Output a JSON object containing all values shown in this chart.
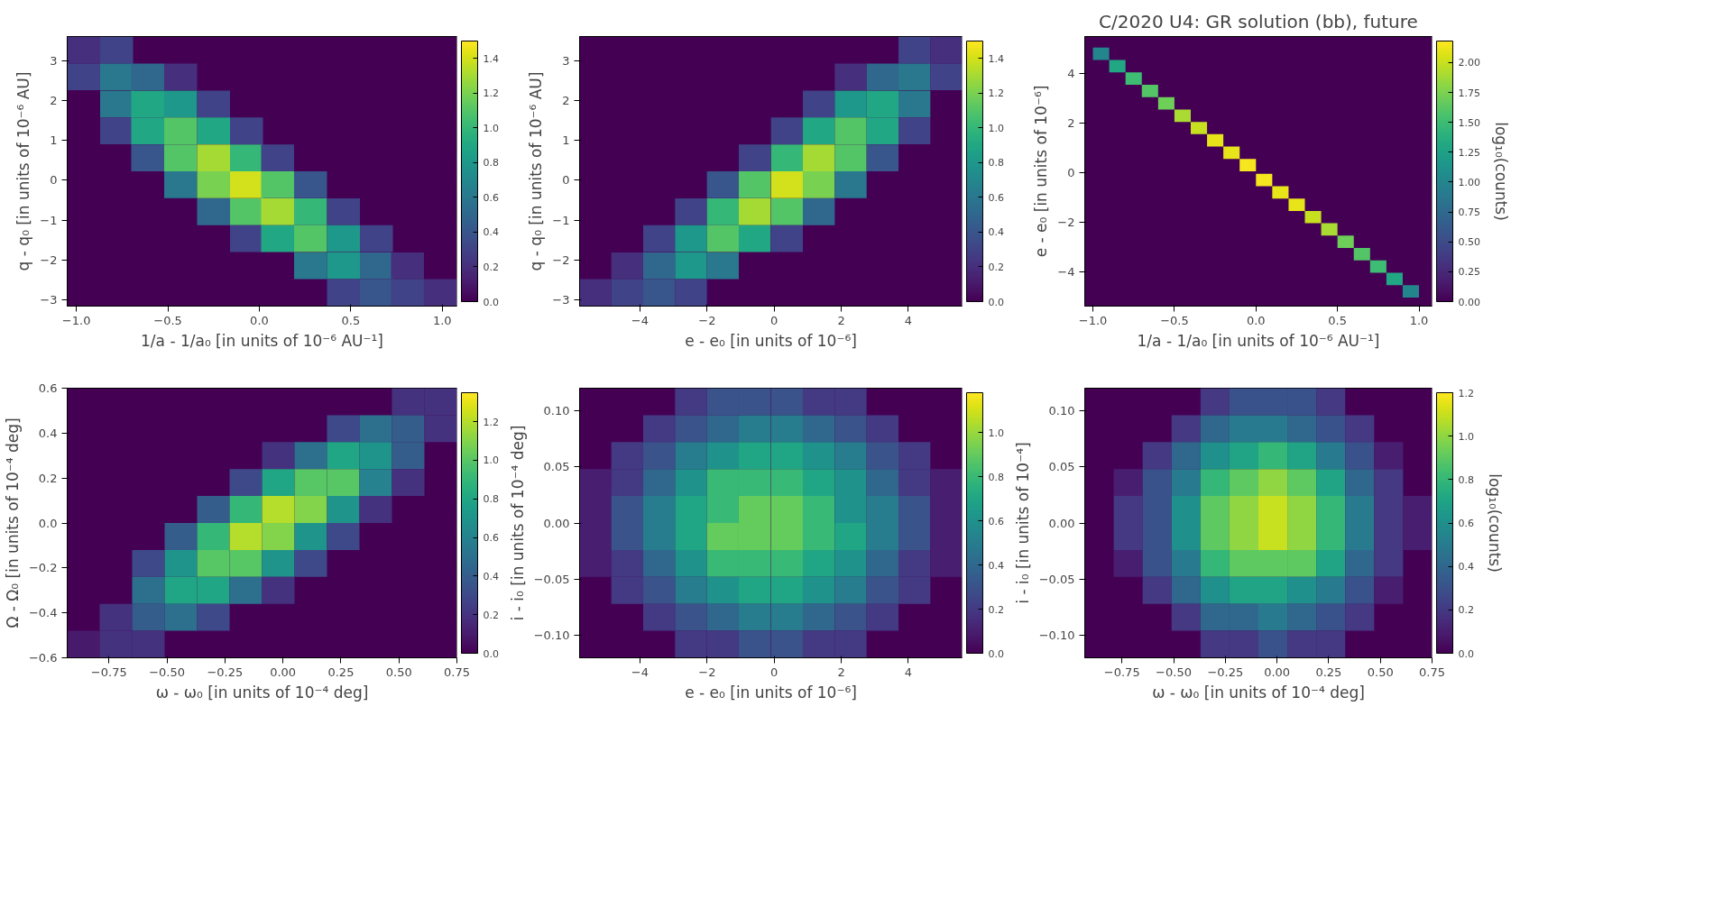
{
  "chart_data": [
    {
      "type": "scatter",
      "marker": "square",
      "xlabel": "1/a - 1/a₀ [in units of 10⁻⁶ AU⁻¹]",
      "ylabel": "q - q₀ [in units of 10⁻⁶ AU]",
      "x": [
        -0.96,
        -0.78,
        -0.96,
        -0.78,
        -0.61,
        -0.43,
        -0.78,
        -0.61,
        -0.43,
        -0.25,
        -0.78,
        -0.61,
        -0.43,
        -0.25,
        -0.07,
        -0.61,
        -0.43,
        -0.25,
        -0.07,
        0.1,
        -0.43,
        -0.25,
        -0.07,
        0.1,
        0.28,
        -0.25,
        -0.07,
        0.1,
        0.28,
        0.46,
        -0.07,
        0.1,
        0.28,
        0.46,
        0.64,
        0.28,
        0.46,
        0.64,
        0.81,
        0.46,
        0.64,
        0.81,
        0.99
      ],
      "values": [
        3.26,
        3.26,
        2.59,
        2.59,
        2.59,
        2.59,
        1.91,
        1.91,
        1.91,
        1.91,
        1.24,
        1.24,
        1.24,
        1.24,
        1.24,
        0.56,
        0.56,
        0.56,
        0.56,
        0.56,
        -0.11,
        -0.11,
        -0.11,
        -0.11,
        -0.11,
        -0.79,
        -0.79,
        -0.79,
        -0.79,
        -0.79,
        -1.46,
        -1.46,
        -1.46,
        -1.46,
        -1.46,
        -2.14,
        -2.14,
        -2.14,
        -2.14,
        -2.81,
        -2.81,
        -2.81,
        -2.81
      ],
      "cvalues": [
        0.2,
        0.3,
        0.3,
        0.6,
        0.5,
        0.2,
        0.6,
        0.9,
        0.8,
        0.3,
        0.3,
        0.9,
        1.1,
        0.9,
        0.3,
        0.4,
        1.1,
        1.3,
        1.0,
        0.3,
        0.6,
        1.2,
        1.4,
        1.1,
        0.4,
        0.5,
        1.1,
        1.3,
        1.0,
        0.3,
        0.3,
        0.9,
        1.1,
        0.8,
        0.3,
        0.6,
        0.8,
        0.5,
        0.2,
        0.3,
        0.4,
        0.3,
        0.2
      ],
      "xlim": [
        -1.05,
        1.08
      ],
      "ylim": [
        -3.15,
        3.6
      ],
      "xticks": [
        {
          "value": -1,
          "label": "−1.0"
        },
        {
          "value": -0.5,
          "label": "−0.5"
        },
        {
          "value": 0,
          "label": "0.0"
        },
        {
          "value": 0.5,
          "label": "0.5"
        },
        {
          "value": 1,
          "label": "1.0"
        }
      ],
      "yticks": [
        {
          "value": -3,
          "label": "−3"
        },
        {
          "value": -2,
          "label": "−2"
        },
        {
          "value": -1,
          "label": "−1"
        },
        0,
        1,
        2,
        3
      ],
      "clim": [
        0,
        1.5
      ],
      "cticks": [
        {
          "value": 0,
          "label": "0.0"
        },
        0.2,
        0.4,
        0.6,
        0.8,
        {
          "value": 1,
          "label": "1.0"
        },
        1.2,
        1.4
      ]
    },
    {
      "type": "scatter",
      "marker": "square",
      "xlabel": "e - e₀ [in units of 10⁻⁶]",
      "ylabel": "q - q₀ [in units of 10⁻⁶ AU]",
      "x": [
        4.18,
        5.13,
        2.28,
        3.23,
        4.18,
        5.13,
        1.33,
        2.28,
        3.23,
        4.18,
        0.38,
        1.33,
        2.28,
        3.23,
        4.18,
        -0.58,
        0.38,
        1.33,
        2.28,
        3.23,
        -1.53,
        -0.58,
        0.38,
        1.33,
        2.28,
        -2.48,
        -1.53,
        -0.58,
        0.38,
        1.33,
        -3.43,
        -2.48,
        -1.53,
        -0.58,
        0.38,
        -4.38,
        -3.43,
        -2.48,
        -1.53,
        -5.33,
        -4.38,
        -3.43,
        -2.48
      ],
      "values": [
        3.26,
        3.26,
        2.59,
        2.59,
        2.59,
        2.59,
        1.91,
        1.91,
        1.91,
        1.91,
        1.24,
        1.24,
        1.24,
        1.24,
        1.24,
        0.56,
        0.56,
        0.56,
        0.56,
        0.56,
        -0.11,
        -0.11,
        -0.11,
        -0.11,
        -0.11,
        -0.79,
        -0.79,
        -0.79,
        -0.79,
        -0.79,
        -1.46,
        -1.46,
        -1.46,
        -1.46,
        -1.46,
        -2.14,
        -2.14,
        -2.14,
        -2.14,
        -2.81,
        -2.81,
        -2.81,
        -2.81
      ],
      "cvalues": [
        0.3,
        0.2,
        0.2,
        0.5,
        0.6,
        0.3,
        0.3,
        0.8,
        0.9,
        0.6,
        0.3,
        0.9,
        1.1,
        0.9,
        0.3,
        0.3,
        1.0,
        1.3,
        1.1,
        0.4,
        0.4,
        1.1,
        1.4,
        1.2,
        0.6,
        0.3,
        1.0,
        1.3,
        1.1,
        0.5,
        0.3,
        0.8,
        1.1,
        0.9,
        0.3,
        0.2,
        0.5,
        0.8,
        0.6,
        0.2,
        0.3,
        0.4,
        0.3
      ],
      "xlim": [
        -5.8,
        5.6
      ],
      "ylim": [
        -3.15,
        3.6
      ],
      "xticks": [
        {
          "value": -4,
          "label": "−4"
        },
        {
          "value": -2,
          "label": "−2"
        },
        0,
        2,
        4
      ],
      "yticks": [
        {
          "value": -3,
          "label": "−3"
        },
        {
          "value": -2,
          "label": "−2"
        },
        {
          "value": -1,
          "label": "−1"
        },
        0,
        1,
        2,
        3
      ],
      "clim": [
        0,
        1.5
      ],
      "cticks": [
        {
          "value": 0,
          "label": "0.0"
        },
        0.2,
        0.4,
        0.6,
        0.8,
        {
          "value": 1,
          "label": "1.0"
        },
        1.2,
        1.4
      ]
    },
    {
      "type": "scatter",
      "marker": "square",
      "title": "C/2020 U4: GR solution (bb), future",
      "xlabel": "1/a - 1/a₀ [in units of 10⁻⁶ AU⁻¹]",
      "ylabel": "e - e₀ [in units of 10⁻⁶]",
      "clabel": "log₁₀(counts)",
      "x": [
        -0.95,
        -0.85,
        -0.75,
        -0.65,
        -0.55,
        -0.45,
        -0.35,
        -0.25,
        -0.15,
        -0.05,
        0.05,
        0.15,
        0.25,
        0.35,
        0.45,
        0.55,
        0.65,
        0.75,
        0.85,
        0.95
      ],
      "values": [
        4.8,
        4.3,
        3.8,
        3.3,
        2.8,
        2.3,
        1.8,
        1.3,
        0.8,
        0.3,
        -0.3,
        -0.8,
        -1.3,
        -1.8,
        -2.3,
        -2.8,
        -3.3,
        -3.8,
        -4.3,
        -4.8
      ],
      "cvalues": [
        1.0,
        1.3,
        1.5,
        1.6,
        1.7,
        1.9,
        2.0,
        2.1,
        2.1,
        2.15,
        2.15,
        2.1,
        2.1,
        2.0,
        1.9,
        1.7,
        1.6,
        1.5,
        1.3,
        1.0
      ],
      "xlim": [
        -1.05,
        1.08
      ],
      "ylim": [
        -5.4,
        5.5
      ],
      "xticks": [
        {
          "value": -1,
          "label": "−1.0"
        },
        {
          "value": -0.5,
          "label": "−0.5"
        },
        {
          "value": 0,
          "label": "0.0"
        },
        {
          "value": 0.5,
          "label": "0.5"
        },
        {
          "value": 1,
          "label": "1.0"
        }
      ],
      "yticks": [
        {
          "value": -4,
          "label": "−4"
        },
        {
          "value": -2,
          "label": "−2"
        },
        0,
        2,
        4
      ],
      "clim": [
        0,
        2.18
      ],
      "cticks": [
        {
          "value": 0,
          "label": "0.00"
        },
        {
          "value": 0.25,
          "label": "0.25"
        },
        {
          "value": 0.5,
          "label": "0.50"
        },
        {
          "value": 0.75,
          "label": "0.75"
        },
        {
          "value": 1,
          "label": "1.00"
        },
        {
          "value": 1.25,
          "label": "1.25"
        },
        {
          "value": 1.5,
          "label": "1.50"
        },
        {
          "value": 1.75,
          "label": "1.75"
        },
        {
          "value": 2,
          "label": "2.00"
        }
      ]
    },
    {
      "type": "scatter",
      "marker": "square",
      "xlabel": "ω - ω₀ [in units of 10⁻⁴ deg]",
      "ylabel": "Ω - Ω₀ [in units of 10⁻⁴ deg]",
      "x": [
        0.54,
        0.68,
        0.26,
        0.4,
        0.54,
        0.68,
        -0.02,
        0.12,
        0.26,
        0.4,
        0.54,
        -0.16,
        -0.02,
        0.12,
        0.26,
        0.4,
        0.54,
        -0.3,
        -0.16,
        -0.02,
        0.12,
        0.26,
        0.4,
        -0.44,
        -0.3,
        -0.16,
        -0.02,
        0.12,
        0.26,
        -0.58,
        -0.44,
        -0.3,
        -0.16,
        -0.02,
        0.12,
        -0.58,
        -0.44,
        -0.3,
        -0.16,
        -0.02,
        -0.72,
        -0.58,
        -0.44,
        -0.3,
        -0.86,
        -0.72,
        -0.58
      ],
      "values": [
        0.54,
        0.54,
        0.42,
        0.42,
        0.42,
        0.42,
        0.3,
        0.3,
        0.3,
        0.3,
        0.3,
        0.18,
        0.18,
        0.18,
        0.18,
        0.18,
        0.18,
        0.06,
        0.06,
        0.06,
        0.06,
        0.06,
        0.06,
        -0.06,
        -0.06,
        -0.06,
        -0.06,
        -0.06,
        -0.06,
        -0.18,
        -0.18,
        -0.18,
        -0.18,
        -0.18,
        -0.18,
        -0.3,
        -0.3,
        -0.3,
        -0.3,
        -0.3,
        -0.42,
        -0.42,
        -0.42,
        -0.42,
        -0.54,
        -0.54,
        -0.54
      ],
      "cvalues": [
        0.2,
        0.2,
        0.3,
        0.5,
        0.4,
        0.2,
        0.2,
        0.5,
        0.8,
        0.7,
        0.4,
        0.3,
        0.8,
        1.0,
        1.0,
        0.6,
        0.2,
        0.4,
        0.9,
        1.2,
        1.1,
        0.7,
        0.2,
        0.4,
        0.9,
        1.2,
        1.1,
        0.7,
        0.3,
        0.3,
        0.7,
        1.0,
        1.0,
        0.7,
        0.3,
        0.5,
        0.8,
        0.8,
        0.5,
        0.2,
        0.2,
        0.4,
        0.5,
        0.3,
        0.1,
        0.2,
        0.2
      ],
      "xlim": [
        -0.93,
        0.75
      ],
      "ylim": [
        -0.6,
        0.6
      ],
      "xticks": [
        {
          "value": -0.75,
          "label": "−0.75"
        },
        {
          "value": -0.5,
          "label": "−0.50"
        },
        {
          "value": -0.25,
          "label": "−0.25"
        },
        {
          "value": 0,
          "label": "0.00"
        },
        {
          "value": 0.25,
          "label": "0.25"
        },
        {
          "value": 0.5,
          "label": "0.50"
        },
        {
          "value": 0.75,
          "label": "0.75"
        }
      ],
      "yticks": [
        {
          "value": -0.6,
          "label": "−0.6"
        },
        {
          "value": -0.4,
          "label": "−0.4"
        },
        {
          "value": -0.2,
          "label": "−0.2"
        },
        {
          "value": 0,
          "label": "0.0"
        },
        0.2,
        0.4,
        0.6
      ],
      "clim": [
        0,
        1.35
      ],
      "cticks": [
        {
          "value": 0,
          "label": "0.0"
        },
        0.2,
        0.4,
        0.6,
        0.8,
        {
          "value": 1,
          "label": "1.0"
        },
        1.2
      ]
    },
    {
      "type": "scatter",
      "marker": "square",
      "xlabel": "e - e₀ [in units of 10⁻⁶]",
      "ylabel": "i - i₀ [in units of 10⁻⁴ deg]",
      "x": [
        -2.48,
        -1.53,
        -0.58,
        0.38,
        1.33,
        2.28,
        -3.43,
        -2.48,
        -1.53,
        -0.58,
        0.38,
        1.33,
        2.28,
        3.23,
        -4.38,
        -3.43,
        -2.48,
        -1.53,
        -0.58,
        0.38,
        1.33,
        2.28,
        3.23,
        4.18,
        -5.33,
        -4.38,
        -3.43,
        -2.48,
        -1.53,
        -0.58,
        0.38,
        1.33,
        2.28,
        3.23,
        4.18,
        5.13,
        -5.33,
        -4.38,
        -3.43,
        -2.48,
        -1.53,
        -0.58,
        0.38,
        1.33,
        2.28,
        3.23,
        4.18,
        5.13,
        -5.33,
        -4.38,
        -3.43,
        -2.48,
        -1.53,
        -0.58,
        0.38,
        1.33,
        2.28,
        3.23,
        4.18,
        5.13,
        -5.33,
        -4.38,
        -3.43,
        -2.48,
        -1.53,
        -0.58,
        0.38,
        1.33,
        2.28,
        3.23,
        4.18,
        5.13,
        -4.38,
        -3.43,
        -2.48,
        -1.53,
        -0.58,
        0.38,
        1.33,
        2.28,
        3.23,
        4.18,
        -3.43,
        -2.48,
        -1.53,
        -0.58,
        0.38,
        1.33,
        2.28,
        3.23,
        -2.48,
        -1.53,
        -0.58,
        0.38,
        1.33,
        2.28
      ],
      "values": [
        0.108,
        0.108,
        0.108,
        0.108,
        0.108,
        0.108,
        0.084,
        0.084,
        0.084,
        0.084,
        0.084,
        0.084,
        0.084,
        0.084,
        0.06,
        0.06,
        0.06,
        0.06,
        0.06,
        0.06,
        0.06,
        0.06,
        0.06,
        0.06,
        0.036,
        0.036,
        0.036,
        0.036,
        0.036,
        0.036,
        0.036,
        0.036,
        0.036,
        0.036,
        0.036,
        0.036,
        0.012,
        0.012,
        0.012,
        0.012,
        0.012,
        0.012,
        0.012,
        0.012,
        0.012,
        0.012,
        0.012,
        0.012,
        -0.012,
        -0.012,
        -0.012,
        -0.012,
        -0.012,
        -0.012,
        -0.012,
        -0.012,
        -0.012,
        -0.012,
        -0.012,
        -0.012,
        -0.036,
        -0.036,
        -0.036,
        -0.036,
        -0.036,
        -0.036,
        -0.036,
        -0.036,
        -0.036,
        -0.036,
        -0.036,
        -0.036,
        -0.06,
        -0.06,
        -0.06,
        -0.06,
        -0.06,
        -0.06,
        -0.06,
        -0.06,
        -0.06,
        -0.06,
        -0.084,
        -0.084,
        -0.084,
        -0.084,
        -0.084,
        -0.084,
        -0.084,
        -0.084,
        -0.108,
        -0.108,
        -0.108,
        -0.108,
        -0.108,
        -0.108
      ],
      "cvalues": [
        0.2,
        0.3,
        0.3,
        0.3,
        0.2,
        0.2,
        0.2,
        0.3,
        0.4,
        0.5,
        0.5,
        0.4,
        0.3,
        0.2,
        0.2,
        0.3,
        0.5,
        0.6,
        0.7,
        0.7,
        0.6,
        0.5,
        0.3,
        0.2,
        0.1,
        0.2,
        0.4,
        0.6,
        0.8,
        0.8,
        0.8,
        0.7,
        0.6,
        0.4,
        0.2,
        0.1,
        0.1,
        0.3,
        0.5,
        0.7,
        0.8,
        0.9,
        0.9,
        0.8,
        0.6,
        0.5,
        0.3,
        0.1,
        0.1,
        0.3,
        0.5,
        0.7,
        0.9,
        0.9,
        0.9,
        0.8,
        0.7,
        0.5,
        0.3,
        0.1,
        0.1,
        0.2,
        0.4,
        0.6,
        0.8,
        0.8,
        0.8,
        0.7,
        0.6,
        0.4,
        0.2,
        0.1,
        0.2,
        0.3,
        0.5,
        0.6,
        0.7,
        0.7,
        0.6,
        0.5,
        0.3,
        0.2,
        0.2,
        0.3,
        0.4,
        0.5,
        0.5,
        0.4,
        0.3,
        0.2,
        0.2,
        0.2,
        0.3,
        0.3,
        0.2,
        0.2
      ],
      "xlim": [
        -5.8,
        5.6
      ],
      "ylim": [
        -0.12,
        0.12
      ],
      "xticks": [
        {
          "value": -4,
          "label": "−4"
        },
        {
          "value": -2,
          "label": "−2"
        },
        0,
        2,
        4
      ],
      "yticks": [
        {
          "value": -0.1,
          "label": "−0.10"
        },
        {
          "value": -0.05,
          "label": "−0.05"
        },
        {
          "value": 0,
          "label": "0.00"
        },
        {
          "value": 0.05,
          "label": "0.05"
        },
        {
          "value": 0.1,
          "label": "0.10"
        }
      ],
      "clim": [
        0,
        1.18
      ],
      "cticks": [
        {
          "value": 0,
          "label": "0.0"
        },
        0.2,
        0.4,
        0.6,
        0.8,
        {
          "value": 1,
          "label": "1.0"
        }
      ]
    },
    {
      "type": "scatter",
      "marker": "square",
      "xlabel": "ω - ω₀ [in units of 10⁻⁴ deg]",
      "ylabel": "i - i₀ [in units of 10⁻⁴]",
      "clabel": "log₁₀(counts)",
      "x": [
        -0.3,
        -0.16,
        -0.02,
        0.12,
        0.26,
        -0.44,
        -0.3,
        -0.16,
        -0.02,
        0.12,
        0.26,
        0.4,
        -0.58,
        -0.44,
        -0.3,
        -0.16,
        -0.02,
        0.12,
        0.26,
        0.4,
        0.54,
        -0.72,
        -0.58,
        -0.44,
        -0.3,
        -0.16,
        -0.02,
        0.12,
        0.26,
        0.4,
        0.54,
        -0.72,
        -0.58,
        -0.44,
        -0.3,
        -0.16,
        -0.02,
        0.12,
        0.26,
        0.4,
        0.54,
        0.68,
        -0.72,
        -0.58,
        -0.44,
        -0.3,
        -0.16,
        -0.02,
        0.12,
        0.26,
        0.4,
        0.54,
        0.68,
        -0.72,
        -0.58,
        -0.44,
        -0.3,
        -0.16,
        -0.02,
        0.12,
        0.26,
        0.4,
        0.54,
        -0.58,
        -0.44,
        -0.3,
        -0.16,
        -0.02,
        0.12,
        0.26,
        0.4,
        0.54,
        -0.44,
        -0.3,
        -0.16,
        -0.02,
        0.12,
        0.26,
        0.4,
        -0.3,
        -0.16,
        -0.02,
        0.12,
        0.26
      ],
      "values": [
        0.108,
        0.108,
        0.108,
        0.108,
        0.108,
        0.084,
        0.084,
        0.084,
        0.084,
        0.084,
        0.084,
        0.084,
        0.06,
        0.06,
        0.06,
        0.06,
        0.06,
        0.06,
        0.06,
        0.06,
        0.06,
        0.036,
        0.036,
        0.036,
        0.036,
        0.036,
        0.036,
        0.036,
        0.036,
        0.036,
        0.036,
        0.012,
        0.012,
        0.012,
        0.012,
        0.012,
        0.012,
        0.012,
        0.012,
        0.012,
        0.012,
        0.012,
        -0.012,
        -0.012,
        -0.012,
        -0.012,
        -0.012,
        -0.012,
        -0.012,
        -0.012,
        -0.012,
        -0.012,
        -0.012,
        -0.036,
        -0.036,
        -0.036,
        -0.036,
        -0.036,
        -0.036,
        -0.036,
        -0.036,
        -0.036,
        -0.036,
        -0.06,
        -0.06,
        -0.06,
        -0.06,
        -0.06,
        -0.06,
        -0.06,
        -0.06,
        -0.06,
        -0.084,
        -0.084,
        -0.084,
        -0.084,
        -0.084,
        -0.084,
        -0.084,
        -0.108,
        -0.108,
        -0.108,
        -0.108,
        -0.108
      ],
      "cvalues": [
        0.2,
        0.3,
        0.3,
        0.3,
        0.2,
        0.2,
        0.4,
        0.5,
        0.5,
        0.4,
        0.3,
        0.2,
        0.2,
        0.4,
        0.6,
        0.7,
        0.8,
        0.7,
        0.5,
        0.3,
        0.1,
        0.1,
        0.3,
        0.5,
        0.8,
        0.9,
        1.0,
        0.9,
        0.7,
        0.4,
        0.2,
        0.2,
        0.3,
        0.6,
        0.9,
        1.0,
        1.1,
        1.0,
        0.8,
        0.5,
        0.2,
        0.1,
        0.2,
        0.3,
        0.6,
        0.9,
        1.0,
        1.1,
        1.0,
        0.8,
        0.5,
        0.2,
        0.1,
        0.1,
        0.3,
        0.5,
        0.8,
        0.9,
        0.9,
        0.9,
        0.7,
        0.4,
        0.2,
        0.2,
        0.4,
        0.6,
        0.7,
        0.7,
        0.6,
        0.5,
        0.3,
        0.1,
        0.2,
        0.4,
        0.4,
        0.5,
        0.4,
        0.3,
        0.2,
        0.2,
        0.2,
        0.3,
        0.2,
        0.2
      ],
      "xlim": [
        -0.93,
        0.75
      ],
      "ylim": [
        -0.12,
        0.12
      ],
      "xticks": [
        {
          "value": -0.75,
          "label": "−0.75"
        },
        {
          "value": -0.5,
          "label": "−0.50"
        },
        {
          "value": -0.25,
          "label": "−0.25"
        },
        {
          "value": 0,
          "label": "0.00"
        },
        {
          "value": 0.25,
          "label": "0.25"
        },
        {
          "value": 0.5,
          "label": "0.50"
        },
        {
          "value": 0.75,
          "label": "0.75"
        }
      ],
      "yticks": [
        {
          "value": -0.1,
          "label": "−0.10"
        },
        {
          "value": -0.05,
          "label": "−0.05"
        },
        {
          "value": 0,
          "label": "0.00"
        },
        {
          "value": 0.05,
          "label": "0.05"
        },
        {
          "value": 0.1,
          "label": "0.10"
        }
      ],
      "clim": [
        0,
        1.2
      ],
      "cticks": [
        {
          "value": 0,
          "label": "0.0"
        },
        0.2,
        0.4,
        0.6,
        0.8,
        {
          "value": 1,
          "label": "1.0"
        },
        1.2
      ]
    }
  ]
}
